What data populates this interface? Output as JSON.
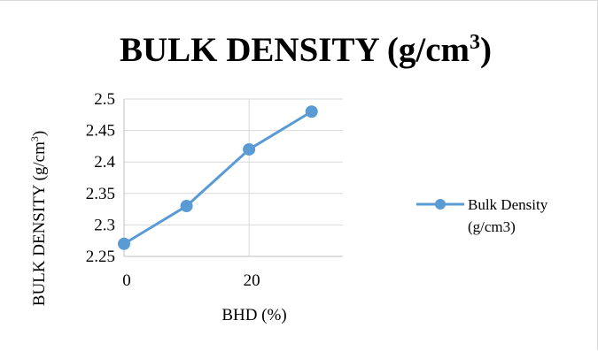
{
  "chart_data": {
    "type": "line",
    "title": "BULK DENSITY (g/cm",
    "title_superscript": "3",
    "title_close": ")",
    "xlabel": "BHD (%)",
    "ylabel": "BULK DENSITY (g/cm",
    "ylabel_superscript": "3",
    "ylabel_close": ")",
    "x": [
      0,
      10,
      20,
      30
    ],
    "x_tick_labels": [
      "0",
      "20"
    ],
    "x_tick_values": [
      0,
      20
    ],
    "xlim": [
      0,
      35
    ],
    "ylim": [
      2.25,
      2.5
    ],
    "y_tick_labels": [
      "2.25",
      "2.3",
      "2.35",
      "2.4",
      "2.45",
      "2.5"
    ],
    "y_tick_values": [
      2.25,
      2.3,
      2.35,
      2.4,
      2.45,
      2.5
    ],
    "grid": true,
    "legend_position": "right",
    "series": [
      {
        "name": "Bulk Density",
        "name_line2": "(g/cm3)",
        "color": "#5b9bd5",
        "values": [
          2.27,
          2.33,
          2.42,
          2.48
        ]
      }
    ]
  }
}
